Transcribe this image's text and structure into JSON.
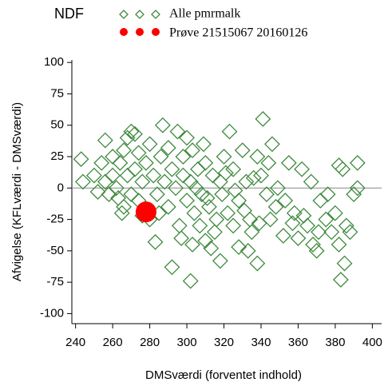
{
  "chart_data": {
    "type": "scatter",
    "title": "NDF",
    "xlabel": "DMSværdi (forventet indhold)",
    "ylabel": "Afvigelse (KFLværdi - DMSværdi)",
    "xlim": [
      238,
      405
    ],
    "ylim": [
      -108,
      102
    ],
    "xticks": [
      240,
      260,
      280,
      300,
      320,
      340,
      360,
      380,
      400
    ],
    "yticks": [
      -100,
      -75,
      -50,
      -25,
      0,
      25,
      50,
      75,
      100
    ],
    "hline": 0,
    "series": [
      {
        "name": "Alle pmrmalk",
        "color": "#3f8a3f",
        "marker": "diamond",
        "x": [
          243,
          244,
          252,
          256,
          263,
          265,
          268,
          270,
          272,
          276,
          283,
          287,
          292,
          295,
          300,
          302,
          303,
          310,
          318,
          323,
          328,
          333,
          338,
          341,
          346,
          355,
          358,
          362,
          365,
          368,
          372,
          375,
          378,
          382,
          384,
          383,
          385,
          388,
          390,
          392,
          392,
          382,
          370,
          360,
          352,
          348,
          345,
          343,
          340,
          338,
          335,
          332,
          330,
          328,
          325,
          322,
          320,
          318,
          316,
          314,
          312,
          310,
          308,
          306,
          304,
          302,
          300,
          298,
          296,
          294,
          292,
          290,
          288,
          286,
          284,
          282,
          280,
          278,
          276,
          274,
          272,
          270,
          268,
          266,
          264,
          262,
          260,
          258,
          256,
          250,
          254,
          260,
          266,
          274,
          280,
          290,
          298,
          305,
          307,
          311,
          315,
          319,
          321,
          326,
          331,
          336,
          339,
          344,
          349,
          353,
          357,
          363,
          367,
          371,
          376,
          380,
          386,
          303,
          309,
          313,
          297,
          285,
          325,
          334
        ],
        "values": [
          23,
          5,
          -3,
          38,
          -8,
          -20,
          40,
          45,
          43,
          -22,
          -43,
          50,
          -63,
          45,
          40,
          -74,
          -45,
          -42,
          -58,
          45,
          -47,
          -50,
          -60,
          55,
          35,
          20,
          -20,
          15,
          -30,
          -45,
          -10,
          -25,
          -35,
          18,
          15,
          -73,
          -60,
          -35,
          -5,
          20,
          0,
          -45,
          -50,
          -40,
          -38,
          -15,
          -25,
          -5,
          10,
          25,
          -35,
          5,
          30,
          -10,
          15,
          -20,
          25,
          5,
          -25,
          10,
          -15,
          20,
          -5,
          15,
          -20,
          5,
          -10,
          25,
          -30,
          0,
          15,
          -15,
          5,
          25,
          -5,
          10,
          -25,
          20,
          5,
          -10,
          15,
          -5,
          10,
          -15,
          20,
          0,
          10,
          -5,
          5,
          10,
          20,
          25,
          30,
          28,
          35,
          32,
          10,
          0,
          -30,
          -8,
          -35,
          -5,
          12,
          -2,
          -18,
          8,
          -28,
          20,
          0,
          -10,
          -28,
          -22,
          5,
          -35,
          -5,
          -20,
          -30,
          30,
          35,
          -48,
          -40,
          -20,
          -30,
          -25
        ]
      },
      {
        "name": "Prøve 21515067 20160126",
        "color": "#ff0000",
        "marker": "circle",
        "x": [
          278
        ],
        "values": [
          -19
        ]
      }
    ]
  }
}
